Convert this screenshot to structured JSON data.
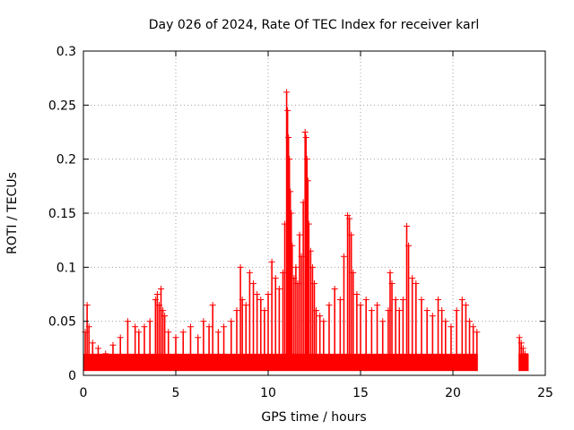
{
  "chart_data": {
    "type": "scatter",
    "title": "Day 026 of 2024, Rate Of TEC Index for receiver karl",
    "xlabel": "GPS time / hours",
    "ylabel": "ROTI / TECUs",
    "xlim": [
      0,
      25
    ],
    "ylim": [
      0,
      0.3
    ],
    "xticks": [
      0,
      5,
      10,
      15,
      20,
      25
    ],
    "xtick_labels": [
      "0",
      "5",
      "10",
      "15",
      "20",
      "25"
    ],
    "yticks": [
      0,
      0.05,
      0.1,
      0.15,
      0.2,
      0.25,
      0.3
    ],
    "ytick_labels": [
      "0",
      "0.05",
      "0.1",
      "0.15",
      "0.2",
      "0.25",
      "0.3"
    ],
    "grid": true,
    "marker": "plus",
    "color": "#ff0000",
    "series": [
      {
        "x": [
          0.1,
          0.2,
          0.3,
          0.5,
          0.8,
          1.2,
          1.6,
          2.0,
          2.4,
          2.8,
          3.0,
          3.3,
          3.6,
          3.9,
          4.0,
          4.1,
          4.2,
          4.3,
          4.4,
          4.6,
          5.0,
          5.4,
          5.8,
          6.2,
          6.5,
          6.8,
          7.0,
          7.3,
          7.6,
          8.0,
          8.3,
          8.5,
          8.6,
          8.8,
          9.0,
          9.2,
          9.4,
          9.6,
          9.8,
          10.0,
          10.2,
          10.4,
          10.6,
          10.8,
          10.9,
          11.0,
          11.05,
          11.1,
          11.15,
          11.2,
          11.25,
          11.3,
          11.4,
          11.5,
          11.6,
          11.7,
          11.8,
          11.9,
          12.0,
          12.05,
          12.1,
          12.15,
          12.2,
          12.3,
          12.4,
          12.5,
          12.6,
          12.8,
          13.0,
          13.3,
          13.6,
          13.9,
          14.1,
          14.3,
          14.4,
          14.5,
          14.6,
          14.8,
          15.0,
          15.3,
          15.6,
          15.9,
          16.2,
          16.5,
          16.6,
          16.7,
          16.9,
          17.1,
          17.3,
          17.5,
          17.6,
          17.8,
          18.0,
          18.3,
          18.6,
          18.9,
          19.2,
          19.4,
          19.6,
          19.9,
          20.2,
          20.5,
          20.7,
          20.9,
          21.1,
          21.3,
          23.6,
          23.7,
          23.8,
          23.9
        ],
        "y": [
          0.04,
          0.065,
          0.045,
          0.03,
          0.025,
          0.02,
          0.028,
          0.035,
          0.05,
          0.045,
          0.04,
          0.045,
          0.05,
          0.07,
          0.075,
          0.065,
          0.08,
          0.06,
          0.055,
          0.04,
          0.035,
          0.04,
          0.045,
          0.035,
          0.05,
          0.045,
          0.065,
          0.04,
          0.045,
          0.05,
          0.06,
          0.1,
          0.07,
          0.065,
          0.095,
          0.085,
          0.075,
          0.07,
          0.06,
          0.075,
          0.105,
          0.09,
          0.08,
          0.095,
          0.14,
          0.262,
          0.245,
          0.22,
          0.2,
          0.17,
          0.15,
          0.12,
          0.09,
          0.1,
          0.085,
          0.13,
          0.11,
          0.16,
          0.225,
          0.22,
          0.2,
          0.18,
          0.14,
          0.115,
          0.1,
          0.085,
          0.06,
          0.055,
          0.05,
          0.065,
          0.08,
          0.07,
          0.11,
          0.148,
          0.145,
          0.13,
          0.095,
          0.075,
          0.065,
          0.07,
          0.06,
          0.065,
          0.05,
          0.06,
          0.095,
          0.085,
          0.07,
          0.06,
          0.07,
          0.138,
          0.12,
          0.09,
          0.085,
          0.07,
          0.06,
          0.055,
          0.07,
          0.06,
          0.05,
          0.045,
          0.06,
          0.07,
          0.065,
          0.05,
          0.045,
          0.04,
          0.035,
          0.03,
          0.025,
          0.02
        ]
      }
    ]
  }
}
